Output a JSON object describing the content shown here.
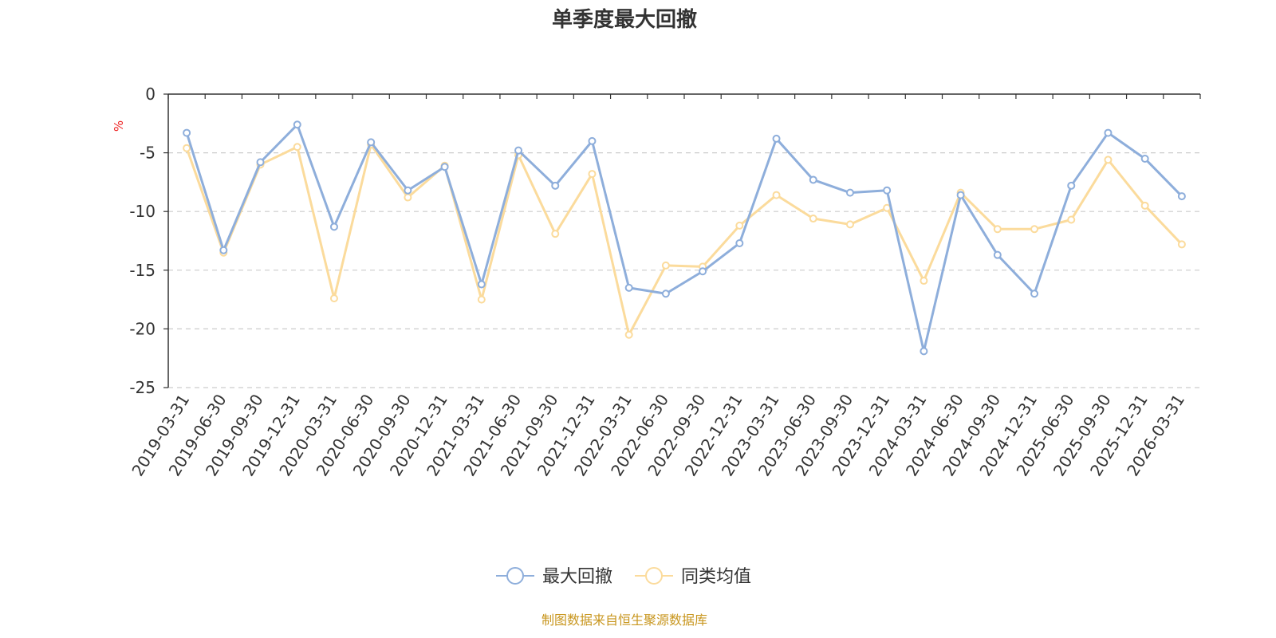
{
  "chart_data": {
    "type": "line",
    "title": "单季度最大回撤",
    "ylabel": "%",
    "xlabel": "",
    "ylim": [
      -25,
      0
    ],
    "yticks": [
      0,
      -5,
      -10,
      -15,
      -20,
      -25
    ],
    "grid": true,
    "legend_position": "bottom-center",
    "categories": [
      "2019-03-31",
      "2019-06-30",
      "2019-09-30",
      "2019-12-31",
      "2020-03-31",
      "2020-06-30",
      "2020-09-30",
      "2020-12-31",
      "2021-03-31",
      "2021-06-30",
      "2021-09-30",
      "2021-12-31",
      "2022-03-31",
      "2022-06-30",
      "2022-09-30",
      "2022-12-31",
      "2023-03-31",
      "2023-06-30",
      "2023-09-30",
      "2023-12-31",
      "2024-03-31",
      "2024-06-30",
      "2024-09-30",
      "2024-12-31",
      "2025-06-30",
      "2025-09-30",
      "2025-12-31",
      "2026-03-31"
    ],
    "series": [
      {
        "name": "最大回撤",
        "color": "#8eaedb",
        "values": [
          -3.3,
          -13.3,
          -5.8,
          -2.6,
          -11.3,
          -4.1,
          -8.2,
          -6.2,
          -16.2,
          -4.8,
          -7.8,
          -4.0,
          -16.5,
          -17.0,
          -15.1,
          -12.7,
          -3.8,
          -7.3,
          -8.4,
          -8.2,
          -21.9,
          -8.6,
          -13.7,
          -17.0,
          -7.8,
          -3.3,
          -5.5,
          -8.7
        ]
      },
      {
        "name": "同类均值",
        "color": "#fbdb9c",
        "values": [
          -4.6,
          -13.5,
          -6.0,
          -4.5,
          -17.4,
          -4.3,
          -8.8,
          -6.1,
          -17.5,
          -5.2,
          -11.9,
          -6.8,
          -20.5,
          -14.6,
          -14.7,
          -11.2,
          -8.6,
          -10.6,
          -11.1,
          -9.7,
          -15.9,
          -8.4,
          -11.5,
          -11.5,
          -10.7,
          -5.6,
          -9.5,
          -12.8
        ]
      }
    ]
  },
  "source": "制图数据来自恒生聚源数据库"
}
